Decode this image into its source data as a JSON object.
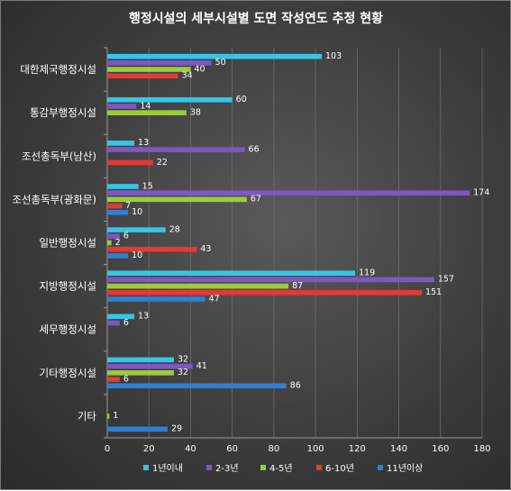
{
  "chart_data": {
    "type": "bar",
    "orientation": "horizontal",
    "title": "행정시설의 세부시설별 도면 작성연도 추정 현황",
    "categories": [
      "대한제국행정시설",
      "통감부행정시설",
      "조선총독부(남산)",
      "조선총독부(광화문)",
      "일반행정시설",
      "지방행정시설",
      "세무행정시설",
      "기타행정시설",
      "기타"
    ],
    "series": [
      {
        "name": "1년이내",
        "color": "#35c6e8",
        "values": [
          103,
          60,
          13,
          15,
          28,
          119,
          13,
          32,
          0
        ]
      },
      {
        "name": "2-3년",
        "color": "#7e57c2",
        "values": [
          50,
          14,
          66,
          174,
          6,
          157,
          6,
          41,
          0
        ]
      },
      {
        "name": "4-5년",
        "color": "#9ccc3c",
        "values": [
          40,
          38,
          0,
          67,
          2,
          87,
          0,
          32,
          1
        ]
      },
      {
        "name": "6-10년",
        "color": "#e53935",
        "values": [
          34,
          0,
          22,
          7,
          43,
          151,
          0,
          6,
          0
        ]
      },
      {
        "name": "11년이상",
        "color": "#2f7fd8",
        "values": [
          0,
          0,
          0,
          10,
          10,
          47,
          0,
          86,
          29
        ]
      }
    ],
    "data_labels": [
      [
        "103",
        "50",
        "40",
        "34",
        ""
      ],
      [
        "60",
        "14",
        "38",
        "",
        ""
      ],
      [
        "13",
        "66",
        "",
        "22",
        ""
      ],
      [
        "15",
        "174",
        "67",
        "7",
        "10"
      ],
      [
        "28",
        "6",
        "2",
        "43",
        "10"
      ],
      [
        "119",
        "157",
        "87",
        "151",
        "47"
      ],
      [
        "13",
        "6",
        "",
        "",
        ""
      ],
      [
        "32",
        "41",
        "32",
        "6",
        "86"
      ],
      [
        "",
        "",
        "1",
        "",
        "29"
      ]
    ],
    "xlim": [
      0,
      180
    ],
    "xticks": [
      "0",
      "20",
      "40",
      "60",
      "80",
      "100",
      "120",
      "140",
      "160",
      "180"
    ],
    "grid": true,
    "legend_position": "bottom"
  }
}
